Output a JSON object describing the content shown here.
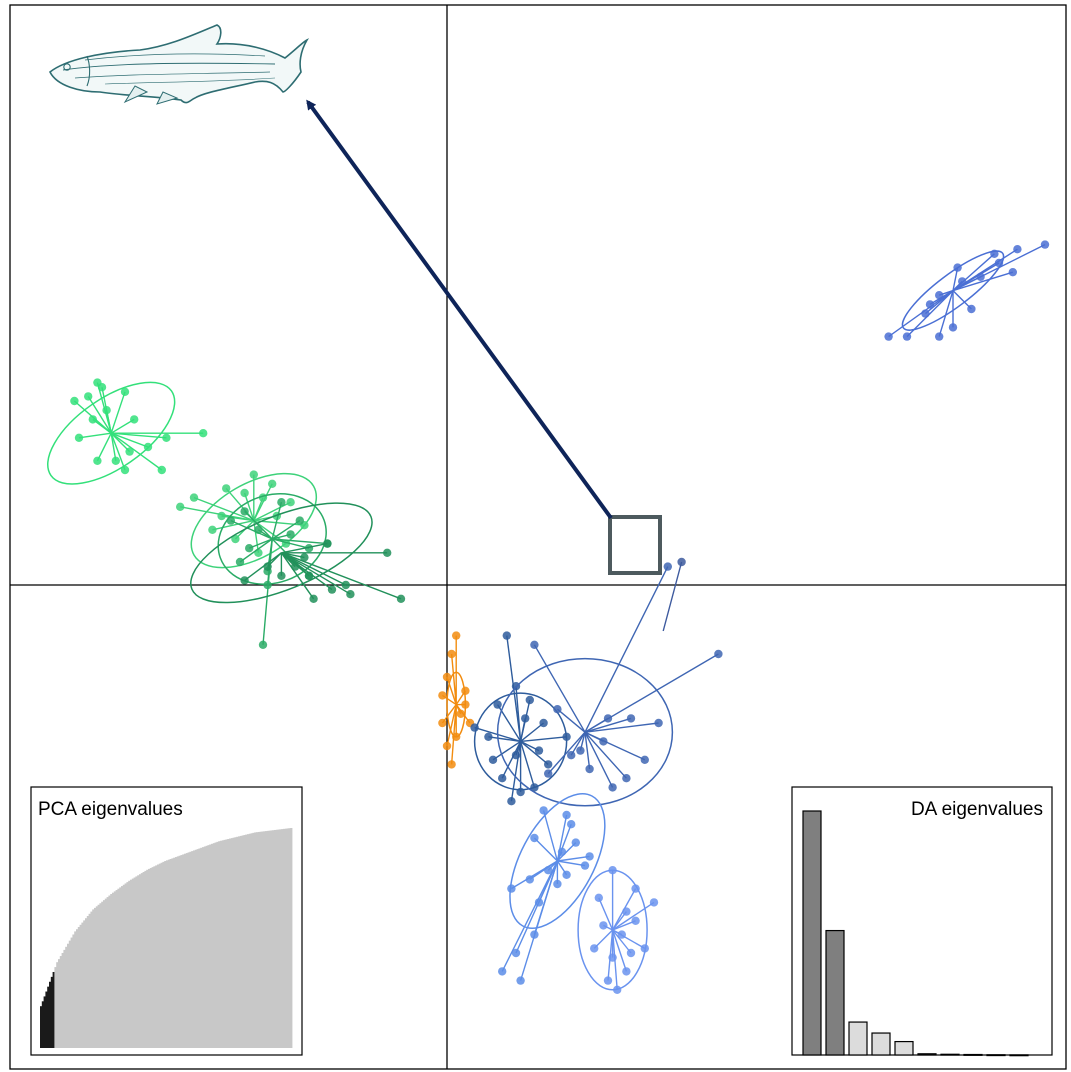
{
  "chart_data": [
    {
      "type": "scatter",
      "title": "",
      "xlabel": "",
      "ylabel": "",
      "grid": false,
      "axes_lines": "cross at origin",
      "xlim": [
        -9.5,
        13.5
      ],
      "ylim": [
        -10.8,
        12.5
      ],
      "clusters": [
        {
          "color": "#33e07a",
          "centroid": [
            -7.3,
            3.3
          ],
          "ellipse": {
            "rx": 1.6,
            "ry": 0.75,
            "angle": 35
          },
          "points": [
            [
              -7.5,
              4.3
            ],
            [
              -7.8,
              4.1
            ],
            [
              -7.6,
              4.4
            ],
            [
              -8.1,
              4.0
            ],
            [
              -7.0,
              4.2
            ],
            [
              -6.8,
              3.6
            ],
            [
              -6.5,
              3.0
            ],
            [
              -7.2,
              2.7
            ],
            [
              -7.6,
              2.7
            ],
            [
              -7.0,
              2.5
            ],
            [
              -6.9,
              2.9
            ],
            [
              -7.4,
              3.8
            ],
            [
              -8.0,
              3.2
            ],
            [
              -6.1,
              3.2
            ],
            [
              -5.3,
              3.3
            ],
            [
              -6.2,
              2.5
            ],
            [
              -7.7,
              3.6
            ]
          ]
        },
        {
          "color": "#3ed27a",
          "centroid": [
            -4.2,
            1.4
          ],
          "ellipse": {
            "rx": 1.5,
            "ry": 0.8,
            "angle": 30
          },
          "points": [
            [
              -4.2,
              2.4
            ],
            [
              -4.8,
              2.1
            ],
            [
              -5.5,
              1.9
            ],
            [
              -5.8,
              1.7
            ],
            [
              -4.9,
              1.5
            ],
            [
              -3.8,
              2.2
            ],
            [
              -3.4,
              1.8
            ],
            [
              -3.1,
              1.3
            ],
            [
              -4.6,
              1.0
            ],
            [
              -4.1,
              0.7
            ],
            [
              -3.5,
              0.9
            ],
            [
              -5.1,
              1.2
            ],
            [
              -4.4,
              2.0
            ],
            [
              -3.7,
              1.5
            ],
            [
              -4.0,
              1.9
            ]
          ]
        },
        {
          "color": "#2aab66",
          "centroid": [
            -3.8,
            1.0
          ],
          "ellipse": {
            "rx": 1.2,
            "ry": 0.95,
            "angle": 20
          },
          "points": [
            [
              -4.4,
              1.6
            ],
            [
              -3.2,
              1.4
            ],
            [
              -3.0,
              0.8
            ],
            [
              -4.5,
              0.5
            ],
            [
              -3.9,
              0.3
            ],
            [
              -3.6,
              1.8
            ],
            [
              -4.3,
              0.8
            ],
            [
              -3.0,
              0.2
            ],
            [
              -2.6,
              0.9
            ],
            [
              -4.1,
              1.2
            ],
            [
              -3.4,
              1.1
            ],
            [
              -3.9,
              0.0
            ],
            [
              -4.0,
              -1.3
            ],
            [
              -4.7,
              1.4
            ]
          ]
        },
        {
          "color": "#21905a",
          "centroid": [
            -3.6,
            0.7
          ],
          "ellipse": {
            "rx": 2.1,
            "ry": 0.8,
            "angle": 22
          },
          "points": [
            [
              -3.0,
              0.2
            ],
            [
              -2.6,
              0.9
            ],
            [
              -2.2,
              0.0
            ],
            [
              -2.9,
              -0.3
            ],
            [
              -3.3,
              0.4
            ],
            [
              -3.9,
              0.4
            ],
            [
              -4.4,
              0.1
            ],
            [
              -3.1,
              0.6
            ],
            [
              -1.3,
              0.7
            ],
            [
              -1.0,
              -0.3
            ],
            [
              -2.5,
              -0.1
            ],
            [
              -3.6,
              0.2
            ],
            [
              -2.1,
              -0.2
            ]
          ]
        },
        {
          "color": "#f28c0f",
          "centroid": [
            0.2,
            -2.6
          ],
          "ellipse": {
            "rx": 0.2,
            "ry": 0.7,
            "angle": 0
          },
          "points": [
            [
              0.2,
              -1.1
            ],
            [
              0.1,
              -1.5
            ],
            [
              0.0,
              -2.0
            ],
            [
              -0.1,
              -2.4
            ],
            [
              0.4,
              -2.3
            ],
            [
              0.5,
              -3.0
            ],
            [
              0.2,
              -3.3
            ],
            [
              0.0,
              -3.5
            ],
            [
              0.1,
              -3.9
            ],
            [
              0.3,
              -2.8
            ],
            [
              -0.1,
              -3.0
            ],
            [
              0.4,
              -2.6
            ]
          ]
        },
        {
          "color": "#2e5c9c",
          "centroid": [
            1.6,
            -3.4
          ],
          "ellipse": {
            "rx": 1.0,
            "ry": 1.05,
            "angle": 0
          },
          "points": [
            [
              1.3,
              -1.1
            ],
            [
              1.1,
              -2.6
            ],
            [
              0.9,
              -3.3
            ],
            [
              1.5,
              -2.2
            ],
            [
              1.7,
              -2.9
            ],
            [
              2.1,
              -3.0
            ],
            [
              1.0,
              -3.8
            ],
            [
              1.4,
              -4.7
            ],
            [
              1.6,
              -4.5
            ],
            [
              2.2,
              -3.9
            ],
            [
              1.9,
              -4.4
            ],
            [
              0.6,
              -3.1
            ],
            [
              1.8,
              -2.5
            ],
            [
              2.6,
              -3.3
            ],
            [
              1.2,
              -4.2
            ],
            [
              2.0,
              -3.6
            ],
            [
              1.5,
              -3.7
            ]
          ]
        },
        {
          "color": "#3f66b3",
          "centroid": [
            3.0,
            -3.2
          ],
          "ellipse": {
            "rx": 1.9,
            "ry": 1.6,
            "angle": 0
          },
          "points": [
            [
              4.8,
              0.4
            ],
            [
              5.9,
              -1.5
            ],
            [
              1.9,
              -1.3
            ],
            [
              4.6,
              -3.0
            ],
            [
              4.3,
              -3.8
            ],
            [
              4.0,
              -2.9
            ],
            [
              3.6,
              -4.4
            ],
            [
              3.9,
              -4.2
            ],
            [
              2.4,
              -2.7
            ],
            [
              2.7,
              -3.7
            ],
            [
              2.2,
              -4.1
            ],
            [
              3.5,
              -2.9
            ],
            [
              3.1,
              -4.0
            ],
            [
              3.4,
              -3.4
            ],
            [
              2.9,
              -3.6
            ]
          ]
        },
        {
          "color": "#5c8de8",
          "centroid": [
            2.4,
            -6.0
          ],
          "ellipse": {
            "rx": 1.6,
            "ry": 0.8,
            "angle": 62
          },
          "points": [
            [
              2.1,
              -4.9
            ],
            [
              2.6,
              -5.0
            ],
            [
              1.9,
              -5.5
            ],
            [
              2.5,
              -5.8
            ],
            [
              2.8,
              -5.6
            ],
            [
              2.2,
              -6.2
            ],
            [
              1.8,
              -6.4
            ],
            [
              1.4,
              -6.6
            ],
            [
              3.0,
              -6.1
            ],
            [
              1.2,
              -8.4
            ],
            [
              1.5,
              -8.0
            ],
            [
              1.6,
              -8.6
            ],
            [
              2.4,
              -6.5
            ],
            [
              2.7,
              -5.2
            ],
            [
              3.1,
              -5.9
            ],
            [
              2.0,
              -6.9
            ],
            [
              2.6,
              -6.3
            ],
            [
              1.9,
              -7.6
            ]
          ]
        },
        {
          "color": "#6a93ef",
          "centroid": [
            3.6,
            -7.5
          ],
          "ellipse": {
            "rx": 0.75,
            "ry": 1.3,
            "angle": 0
          },
          "points": [
            [
              3.6,
              -6.2
            ],
            [
              3.3,
              -6.8
            ],
            [
              4.1,
              -6.6
            ],
            [
              3.9,
              -7.1
            ],
            [
              3.4,
              -7.4
            ],
            [
              3.8,
              -7.6
            ],
            [
              4.1,
              -7.3
            ],
            [
              4.5,
              -6.9
            ],
            [
              3.2,
              -7.9
            ],
            [
              3.6,
              -8.1
            ],
            [
              3.9,
              -8.4
            ],
            [
              3.7,
              -8.8
            ],
            [
              4.0,
              -8.0
            ],
            [
              3.5,
              -8.6
            ],
            [
              4.3,
              -7.9
            ]
          ]
        },
        {
          "color": "#4a6fd4",
          "centroid": [
            11.0,
            6.4
          ],
          "ellipse": {
            "rx": 1.35,
            "ry": 0.35,
            "angle": 37
          },
          "points": [
            [
              12.4,
              7.3
            ],
            [
              13.0,
              7.4
            ],
            [
              12.0,
              7.0
            ],
            [
              11.6,
              6.7
            ],
            [
              11.9,
              7.2
            ],
            [
              10.4,
              5.9
            ],
            [
              9.6,
              5.4
            ],
            [
              10.0,
              5.4
            ],
            [
              10.7,
              5.4
            ],
            [
              11.0,
              5.6
            ],
            [
              11.4,
              6.0
            ],
            [
              11.2,
              6.6
            ],
            [
              10.7,
              6.3
            ],
            [
              12.3,
              6.8
            ],
            [
              11.1,
              6.9
            ],
            [
              10.5,
              6.1
            ]
          ]
        },
        {
          "color": "#3d5a9e",
          "centroid": [
            4.7,
            -1.0
          ],
          "ellipse": null,
          "points": [
            [
              5.1,
              0.5
            ]
          ]
        }
      ]
    },
    {
      "type": "area",
      "title": "PCA eigenvalues",
      "x": [
        1,
        10,
        20,
        30,
        40,
        50,
        60,
        70,
        80,
        90,
        100,
        110,
        120,
        130,
        140
      ],
      "y": [
        0.19,
        0.39,
        0.53,
        0.63,
        0.7,
        0.76,
        0.81,
        0.85,
        0.88,
        0.91,
        0.94,
        0.96,
        0.98,
        0.99,
        1.0
      ],
      "retained_components": 8,
      "colors": {
        "retained": "#1a1a1a",
        "other": "#c8c8c8"
      }
    },
    {
      "type": "bar",
      "title": "DA eigenvalues",
      "values": [
        100,
        51,
        13.5,
        9,
        5.5,
        0.5,
        0.3,
        0.2,
        0.1,
        0.05
      ],
      "retained_components": 2,
      "colors": {
        "retained": "#7f7f7f",
        "other": "#dcdcdc"
      }
    }
  ],
  "highlight": {
    "box_color": "#4d5a5e",
    "arrow_color": "#0e2459",
    "target": "fish-illustration"
  },
  "colors": {
    "axis": "#000000"
  }
}
